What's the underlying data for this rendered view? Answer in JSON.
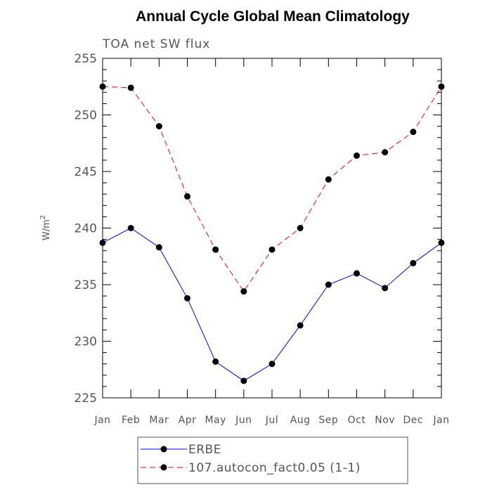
{
  "chart_data": {
    "type": "line",
    "title": "Annual Cycle Global Mean Climatology",
    "subtitle": "TOA net SW flux",
    "ylabel": "W/m",
    "ylabel_sup": "2",
    "categories": [
      "Jan",
      "Feb",
      "Mar",
      "Apr",
      "May",
      "Jun",
      "Jul",
      "Aug",
      "Sep",
      "Oct",
      "Nov",
      "Dec",
      "Jan"
    ],
    "ylim": [
      225,
      255
    ],
    "yticks": [
      225,
      230,
      235,
      240,
      245,
      250,
      255
    ],
    "series": [
      {
        "name": "ERBE",
        "color": "#0000ff",
        "dash": "solid",
        "values": [
          238.7,
          240.0,
          238.3,
          233.8,
          228.2,
          226.5,
          228.0,
          231.4,
          235.0,
          236.0,
          234.7,
          236.9,
          238.7
        ]
      },
      {
        "name": "107.autocon_fact0.05 (1-1)",
        "color": "#ff0000",
        "dash": "dashed",
        "values": [
          252.5,
          252.4,
          249.0,
          242.8,
          238.1,
          234.4,
          238.1,
          240.0,
          244.3,
          246.4,
          246.7,
          248.5,
          252.5
        ]
      }
    ]
  }
}
